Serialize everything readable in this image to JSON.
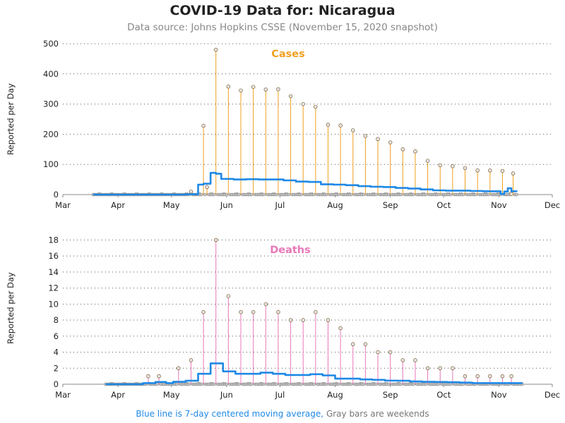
{
  "header": {
    "title": "COVID-19 Data for: Nicaragua",
    "subtitle": "Data source: Johns Hopkins CSSE (November 15, 2020 snapshot)"
  },
  "footnote": {
    "line_text": "Blue line is 7-day centered moving average,",
    "bars_text": "Gray bars are weekends"
  },
  "colors": {
    "cases": "#f0a020",
    "deaths": "#e878b8",
    "average": "#1e88e5",
    "weekend": "#9a9a9a",
    "grid": "#555555",
    "axis": "#888888"
  },
  "chart_data": [
    {
      "type": "needle",
      "metric_label": "Cases",
      "ylabel": "Reported per Day",
      "ylim": [
        0,
        500
      ],
      "yticks": [
        "0",
        "100",
        "200",
        "300",
        "400",
        "500"
      ],
      "xticks": [
        "Mar",
        "Apr",
        "May",
        "Jun",
        "Jul",
        "Aug",
        "Sep",
        "Oct",
        "Nov",
        "Dec"
      ],
      "points": [
        {
          "date": "2020-05-12",
          "value": 10
        },
        {
          "date": "2020-05-19",
          "value": 228
        },
        {
          "date": "2020-05-21",
          "value": 25
        },
        {
          "date": "2020-05-26",
          "value": 480
        },
        {
          "date": "2020-06-02",
          "value": 358
        },
        {
          "date": "2020-06-09",
          "value": 345
        },
        {
          "date": "2020-06-16",
          "value": 357
        },
        {
          "date": "2020-06-23",
          "value": 348
        },
        {
          "date": "2020-06-30",
          "value": 349
        },
        {
          "date": "2020-07-07",
          "value": 326
        },
        {
          "date": "2020-07-14",
          "value": 300
        },
        {
          "date": "2020-07-21",
          "value": 291
        },
        {
          "date": "2020-07-28",
          "value": 232
        },
        {
          "date": "2020-08-04",
          "value": 229
        },
        {
          "date": "2020-08-11",
          "value": 213
        },
        {
          "date": "2020-08-18",
          "value": 194
        },
        {
          "date": "2020-08-25",
          "value": 184
        },
        {
          "date": "2020-09-01",
          "value": 173
        },
        {
          "date": "2020-09-08",
          "value": 150
        },
        {
          "date": "2020-09-15",
          "value": 143
        },
        {
          "date": "2020-09-22",
          "value": 112
        },
        {
          "date": "2020-09-29",
          "value": 97
        },
        {
          "date": "2020-10-06",
          "value": 94
        },
        {
          "date": "2020-10-13",
          "value": 88
        },
        {
          "date": "2020-10-20",
          "value": 80
        },
        {
          "date": "2020-10-27",
          "value": 80
        },
        {
          "date": "2020-11-03",
          "value": 78
        },
        {
          "date": "2020-11-08",
          "value": 2
        },
        {
          "date": "2020-11-09",
          "value": 70
        }
      ],
      "moving_average": [
        {
          "date": "2020-03-18",
          "value": 0
        },
        {
          "date": "2020-05-09",
          "value": 1
        },
        {
          "date": "2020-05-16",
          "value": 33
        },
        {
          "date": "2020-05-19",
          "value": 36
        },
        {
          "date": "2020-05-23",
          "value": 72
        },
        {
          "date": "2020-05-26",
          "value": 69
        },
        {
          "date": "2020-05-29",
          "value": 52
        },
        {
          "date": "2020-06-05",
          "value": 50
        },
        {
          "date": "2020-06-12",
          "value": 51
        },
        {
          "date": "2020-06-19",
          "value": 50
        },
        {
          "date": "2020-06-26",
          "value": 50
        },
        {
          "date": "2020-07-03",
          "value": 47
        },
        {
          "date": "2020-07-10",
          "value": 43
        },
        {
          "date": "2020-07-17",
          "value": 42
        },
        {
          "date": "2020-07-24",
          "value": 34
        },
        {
          "date": "2020-07-31",
          "value": 33
        },
        {
          "date": "2020-08-07",
          "value": 31
        },
        {
          "date": "2020-08-14",
          "value": 28
        },
        {
          "date": "2020-08-21",
          "value": 26
        },
        {
          "date": "2020-08-28",
          "value": 25
        },
        {
          "date": "2020-09-04",
          "value": 22
        },
        {
          "date": "2020-09-11",
          "value": 20
        },
        {
          "date": "2020-09-18",
          "value": 17
        },
        {
          "date": "2020-09-25",
          "value": 14
        },
        {
          "date": "2020-10-02",
          "value": 13
        },
        {
          "date": "2020-10-09",
          "value": 13
        },
        {
          "date": "2020-10-16",
          "value": 12
        },
        {
          "date": "2020-10-23",
          "value": 11
        },
        {
          "date": "2020-10-30",
          "value": 11
        },
        {
          "date": "2020-11-02",
          "value": 2
        },
        {
          "date": "2020-11-04",
          "value": 10
        },
        {
          "date": "2020-11-06",
          "value": 21
        },
        {
          "date": "2020-11-08",
          "value": 11
        },
        {
          "date": "2020-11-11",
          "value": 10
        }
      ],
      "data_range": [
        "2020-03-18",
        "2020-11-11"
      ]
    },
    {
      "type": "needle",
      "metric_label": "Deaths",
      "ylabel": "Reported per Day",
      "ylim": [
        0,
        19
      ],
      "yticks": [
        "0",
        "2",
        "4",
        "6",
        "8",
        "10",
        "12",
        "14",
        "16",
        "18"
      ],
      "xticks": [
        "Mar",
        "Apr",
        "May",
        "Jun",
        "Jul",
        "Aug",
        "Sep",
        "Oct",
        "Nov",
        "Dec"
      ],
      "points": [
        {
          "date": "2020-04-18",
          "value": 1
        },
        {
          "date": "2020-04-24",
          "value": 1
        },
        {
          "date": "2020-05-05",
          "value": 2
        },
        {
          "date": "2020-05-12",
          "value": 3
        },
        {
          "date": "2020-05-19",
          "value": 9
        },
        {
          "date": "2020-05-26",
          "value": 18
        },
        {
          "date": "2020-06-02",
          "value": 11
        },
        {
          "date": "2020-06-09",
          "value": 9
        },
        {
          "date": "2020-06-16",
          "value": 9
        },
        {
          "date": "2020-06-23",
          "value": 10
        },
        {
          "date": "2020-06-30",
          "value": 9
        },
        {
          "date": "2020-07-07",
          "value": 8
        },
        {
          "date": "2020-07-14",
          "value": 8
        },
        {
          "date": "2020-07-21",
          "value": 9
        },
        {
          "date": "2020-07-28",
          "value": 8
        },
        {
          "date": "2020-08-04",
          "value": 7
        },
        {
          "date": "2020-08-11",
          "value": 5
        },
        {
          "date": "2020-08-18",
          "value": 5
        },
        {
          "date": "2020-08-25",
          "value": 4
        },
        {
          "date": "2020-09-01",
          "value": 4
        },
        {
          "date": "2020-09-08",
          "value": 3
        },
        {
          "date": "2020-09-15",
          "value": 3
        },
        {
          "date": "2020-09-22",
          "value": 2
        },
        {
          "date": "2020-09-29",
          "value": 2
        },
        {
          "date": "2020-10-06",
          "value": 2
        },
        {
          "date": "2020-10-13",
          "value": 1
        },
        {
          "date": "2020-10-20",
          "value": 1
        },
        {
          "date": "2020-10-27",
          "value": 1
        },
        {
          "date": "2020-11-03",
          "value": 1
        },
        {
          "date": "2020-11-08",
          "value": 1
        }
      ],
      "moving_average": [
        {
          "date": "2020-03-25",
          "value": 0
        },
        {
          "date": "2020-04-15",
          "value": 0.14
        },
        {
          "date": "2020-04-22",
          "value": 0.28
        },
        {
          "date": "2020-04-28",
          "value": 0.14
        },
        {
          "date": "2020-05-02",
          "value": 0.3
        },
        {
          "date": "2020-05-09",
          "value": 0.43
        },
        {
          "date": "2020-05-16",
          "value": 1.3
        },
        {
          "date": "2020-05-23",
          "value": 2.6
        },
        {
          "date": "2020-05-30",
          "value": 1.6
        },
        {
          "date": "2020-06-06",
          "value": 1.3
        },
        {
          "date": "2020-06-13",
          "value": 1.3
        },
        {
          "date": "2020-06-20",
          "value": 1.45
        },
        {
          "date": "2020-06-27",
          "value": 1.3
        },
        {
          "date": "2020-07-04",
          "value": 1.15
        },
        {
          "date": "2020-07-11",
          "value": 1.15
        },
        {
          "date": "2020-07-18",
          "value": 1.25
        },
        {
          "date": "2020-07-25",
          "value": 1.1
        },
        {
          "date": "2020-08-01",
          "value": 0.7
        },
        {
          "date": "2020-08-08",
          "value": 0.7
        },
        {
          "date": "2020-08-15",
          "value": 0.6
        },
        {
          "date": "2020-08-22",
          "value": 0.55
        },
        {
          "date": "2020-08-29",
          "value": 0.45
        },
        {
          "date": "2020-09-05",
          "value": 0.43
        },
        {
          "date": "2020-09-12",
          "value": 0.35
        },
        {
          "date": "2020-09-19",
          "value": 0.3
        },
        {
          "date": "2020-09-26",
          "value": 0.28
        },
        {
          "date": "2020-10-03",
          "value": 0.25
        },
        {
          "date": "2020-10-10",
          "value": 0.2
        },
        {
          "date": "2020-10-17",
          "value": 0.14
        },
        {
          "date": "2020-10-24",
          "value": 0.14
        },
        {
          "date": "2020-10-31",
          "value": 0.14
        },
        {
          "date": "2020-11-07",
          "value": 0.14
        },
        {
          "date": "2020-11-14",
          "value": 0.1
        }
      ],
      "data_range": [
        "2020-03-25",
        "2020-11-14"
      ]
    }
  ]
}
